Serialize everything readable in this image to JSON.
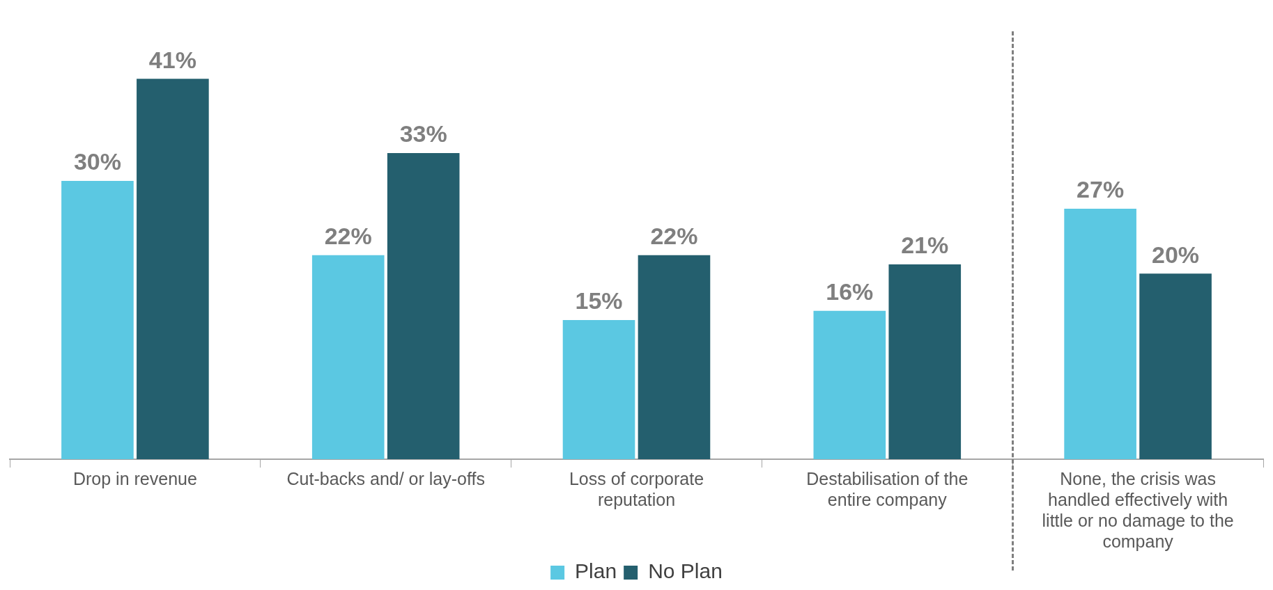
{
  "chart_data": {
    "type": "bar",
    "categories": [
      "Drop in revenue",
      "Cut-backs and/ or lay-offs",
      "Loss of corporate reputation",
      "Destabilisation of the entire company",
      "None, the crisis was handled effectively with little or no damage to the company"
    ],
    "series": [
      {
        "name": "Plan",
        "color": "#5bc8e2",
        "values": [
          30,
          22,
          15,
          16,
          27
        ],
        "value_labels": [
          "30%",
          "22%",
          "15%",
          "16%",
          "27%"
        ]
      },
      {
        "name": "No Plan",
        "color": "#245f6e",
        "values": [
          41,
          33,
          22,
          21,
          20
        ],
        "value_labels": [
          "41%",
          "33%",
          "22%",
          "21%",
          "20%"
        ]
      }
    ],
    "legend": "bottom",
    "grid": false
  }
}
